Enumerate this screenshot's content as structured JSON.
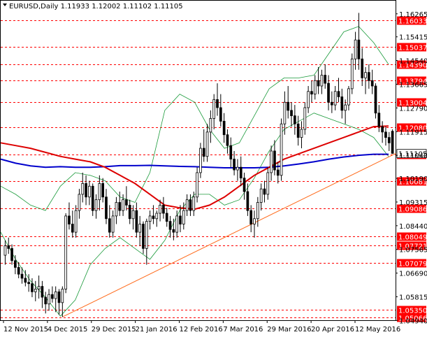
{
  "chart_data": {
    "type": "candlestick",
    "symbol": "EURUSD",
    "timeframe": "Daily",
    "ohlc_header": [
      "1.11933",
      "1.12002",
      "1.11102",
      "1.11105"
    ],
    "ylim": [
      1.0495,
      1.1675
    ],
    "price_ticks": [
      "1.16265",
      "1.15415",
      "1.14540",
      "1.13665",
      "1.12790",
      "1.11915",
      "1.11040",
      "1.10190",
      "1.09315",
      "1.08440",
      "1.07565",
      "1.06690",
      "1.05815",
      "1.04940"
    ],
    "date_ticks": [
      "12 Nov 2015",
      "4 Dec 2015",
      "29 Dec 2015",
      "21 Jan 2016",
      "12 Feb 2016",
      "7 Mar 2016",
      "29 Mar 2016",
      "20 Apr 2016",
      "12 May 2016"
    ],
    "levels": [
      "1.16033",
      "1.15037",
      "1.14390",
      "1.13794",
      "1.13004",
      "1.12080",
      "1.11072",
      "1.10081",
      "1.09086",
      "1.08049",
      "1.07721",
      "1.07079",
      "1.05350",
      "1.05066"
    ],
    "current_price": "1.11105",
    "candles": [
      [
        1.0735,
        1.079,
        1.07,
        1.077
      ],
      [
        1.077,
        1.08,
        1.074,
        1.076
      ],
      [
        1.076,
        1.0775,
        1.07,
        1.0715
      ],
      [
        1.0715,
        1.0735,
        1.0665,
        1.069
      ],
      [
        1.069,
        1.071,
        1.065,
        1.0665
      ],
      [
        1.0665,
        1.069,
        1.063,
        1.065
      ],
      [
        1.065,
        1.068,
        1.062,
        1.0635
      ],
      [
        1.0635,
        1.0665,
        1.06,
        1.063
      ],
      [
        1.063,
        1.065,
        1.058,
        1.06
      ],
      [
        1.06,
        1.064,
        1.0565,
        1.061
      ],
      [
        1.061,
        1.066,
        1.0575,
        1.062
      ],
      [
        1.062,
        1.064,
        1.054,
        1.058
      ],
      [
        1.058,
        1.06,
        1.052,
        1.0555
      ],
      [
        1.0555,
        1.061,
        1.053,
        1.059
      ],
      [
        1.059,
        1.062,
        1.056,
        1.0575
      ],
      [
        1.0575,
        1.062,
        1.0525,
        1.06
      ],
      [
        1.06,
        1.061,
        1.0515,
        1.056
      ],
      [
        1.056,
        1.062,
        1.0507,
        1.061
      ],
      [
        1.061,
        1.089,
        1.0595,
        1.088
      ],
      [
        1.088,
        1.093,
        1.083,
        1.085
      ],
      [
        1.085,
        1.09,
        1.08,
        1.082
      ],
      [
        1.082,
        1.092,
        1.08,
        1.09
      ],
      [
        1.09,
        1.098,
        1.087,
        1.096
      ],
      [
        1.096,
        1.104,
        1.093,
        1.1
      ],
      [
        1.1,
        1.103,
        1.092,
        1.095
      ],
      [
        1.095,
        1.101,
        1.092,
        1.099
      ],
      [
        1.099,
        1.1,
        1.088,
        1.09
      ],
      [
        1.09,
        1.096,
        1.087,
        1.094
      ],
      [
        1.094,
        1.103,
        1.09,
        1.1
      ],
      [
        1.1,
        1.102,
        1.093,
        1.095
      ],
      [
        1.095,
        1.098,
        1.085,
        1.087
      ],
      [
        1.087,
        1.092,
        1.08,
        1.082
      ],
      [
        1.082,
        1.09,
        1.08,
        1.088
      ],
      [
        1.088,
        1.095,
        1.085,
        1.093
      ],
      [
        1.093,
        1.097,
        1.088,
        1.09
      ],
      [
        1.09,
        1.096,
        1.088,
        1.094
      ],
      [
        1.094,
        1.099,
        1.09,
        1.092
      ],
      [
        1.092,
        1.094,
        1.085,
        1.087
      ],
      [
        1.087,
        1.092,
        1.083,
        1.09
      ],
      [
        1.09,
        1.093,
        1.08,
        1.082
      ],
      [
        1.082,
        1.088,
        1.077,
        1.085
      ],
      [
        1.085,
        1.086,
        1.074,
        1.076
      ],
      [
        1.076,
        1.087,
        1.07,
        1.086
      ],
      [
        1.086,
        1.09,
        1.083,
        1.088
      ],
      [
        1.088,
        1.092,
        1.085,
        1.087
      ],
      [
        1.087,
        1.09,
        1.084,
        1.089
      ],
      [
        1.089,
        1.094,
        1.086,
        1.092
      ],
      [
        1.092,
        1.095,
        1.087,
        1.089
      ],
      [
        1.089,
        1.091,
        1.084,
        1.086
      ],
      [
        1.086,
        1.088,
        1.08,
        1.083
      ],
      [
        1.083,
        1.087,
        1.079,
        1.082
      ],
      [
        1.082,
        1.09,
        1.08,
        1.088
      ],
      [
        1.088,
        1.092,
        1.082,
        1.085
      ],
      [
        1.085,
        1.093,
        1.083,
        1.09
      ],
      [
        1.09,
        1.096,
        1.088,
        1.094
      ],
      [
        1.094,
        1.096,
        1.088,
        1.09
      ],
      [
        1.09,
        1.097,
        1.088,
        1.095
      ],
      [
        1.095,
        1.106,
        1.093,
        1.104
      ],
      [
        1.104,
        1.115,
        1.102,
        1.113
      ],
      [
        1.113,
        1.12,
        1.108,
        1.11
      ],
      [
        1.11,
        1.122,
        1.108,
        1.119
      ],
      [
        1.119,
        1.127,
        1.115,
        1.124
      ],
      [
        1.124,
        1.133,
        1.12,
        1.131
      ],
      [
        1.131,
        1.137,
        1.125,
        1.128
      ],
      [
        1.128,
        1.133,
        1.121,
        1.123
      ],
      [
        1.123,
        1.126,
        1.115,
        1.118
      ],
      [
        1.118,
        1.12,
        1.111,
        1.114
      ],
      [
        1.114,
        1.117,
        1.106,
        1.109
      ],
      [
        1.109,
        1.112,
        1.103,
        1.105
      ],
      [
        1.105,
        1.109,
        1.101,
        1.106
      ],
      [
        1.106,
        1.11,
        1.099,
        1.102
      ],
      [
        1.102,
        1.104,
        1.094,
        1.097
      ],
      [
        1.097,
        1.1,
        1.088,
        1.09
      ],
      [
        1.09,
        1.092,
        1.082,
        1.085
      ],
      [
        1.085,
        1.09,
        1.08,
        1.087
      ],
      [
        1.087,
        1.095,
        1.084,
        1.093
      ],
      [
        1.093,
        1.1,
        1.09,
        1.098
      ],
      [
        1.098,
        1.101,
        1.093,
        1.096
      ],
      [
        1.096,
        1.106,
        1.094,
        1.104
      ],
      [
        1.104,
        1.114,
        1.101,
        1.112
      ],
      [
        1.112,
        1.116,
        1.103,
        1.105
      ],
      [
        1.105,
        1.108,
        1.1,
        1.103
      ],
      [
        1.103,
        1.124,
        1.101,
        1.122
      ],
      [
        1.122,
        1.134,
        1.118,
        1.13
      ],
      [
        1.13,
        1.136,
        1.124,
        1.127
      ],
      [
        1.127,
        1.13,
        1.121,
        1.125
      ],
      [
        1.125,
        1.129,
        1.118,
        1.122
      ],
      [
        1.122,
        1.125,
        1.114,
        1.117
      ],
      [
        1.117,
        1.123,
        1.113,
        1.12
      ],
      [
        1.12,
        1.13,
        1.118,
        1.128
      ],
      [
        1.128,
        1.136,
        1.126,
        1.134
      ],
      [
        1.134,
        1.138,
        1.13,
        1.133
      ],
      [
        1.133,
        1.14,
        1.131,
        1.138
      ],
      [
        1.138,
        1.143,
        1.133,
        1.136
      ],
      [
        1.136,
        1.142,
        1.133,
        1.14
      ],
      [
        1.14,
        1.144,
        1.135,
        1.137
      ],
      [
        1.137,
        1.14,
        1.127,
        1.13
      ],
      [
        1.13,
        1.134,
        1.126,
        1.129
      ],
      [
        1.129,
        1.136,
        1.127,
        1.134
      ],
      [
        1.134,
        1.139,
        1.13,
        1.132
      ],
      [
        1.132,
        1.135,
        1.124,
        1.127
      ],
      [
        1.127,
        1.131,
        1.122,
        1.129
      ],
      [
        1.129,
        1.136,
        1.127,
        1.135
      ],
      [
        1.135,
        1.148,
        1.133,
        1.146
      ],
      [
        1.146,
        1.156,
        1.142,
        1.153
      ],
      [
        1.153,
        1.163,
        1.142,
        1.146
      ],
      [
        1.146,
        1.15,
        1.136,
        1.139
      ],
      [
        1.139,
        1.143,
        1.133,
        1.141
      ],
      [
        1.141,
        1.144,
        1.135,
        1.138
      ],
      [
        1.138,
        1.142,
        1.133,
        1.136
      ],
      [
        1.136,
        1.137,
        1.124,
        1.126
      ],
      [
        1.126,
        1.129,
        1.119,
        1.121
      ],
      [
        1.121,
        1.123,
        1.115,
        1.119
      ],
      [
        1.119,
        1.121,
        1.114,
        1.117
      ],
      [
        1.117,
        1.119,
        1.112,
        1.115
      ],
      [
        1.1193,
        1.12,
        1.111,
        1.1111
      ]
    ],
    "ma_red": [
      1.115,
      1.114,
      1.113,
      1.1115,
      1.11,
      1.109,
      1.108,
      1.106,
      1.103,
      1.1,
      1.096,
      1.092,
      1.091,
      1.0905,
      1.092,
      1.095,
      1.099,
      1.103,
      1.106,
      1.109,
      1.111,
      1.113,
      1.115,
      1.117,
      1.119,
      1.121,
      1.1212
    ],
    "ma_blue": [
      1.109,
      1.1075,
      1.1065,
      1.106,
      1.1062,
      1.106,
      1.106,
      1.1062,
      1.1066,
      1.1066,
      1.1067,
      1.1065,
      1.1063,
      1.1062,
      1.106,
      1.1058,
      1.1058,
      1.1058,
      1.106,
      1.1065,
      1.1072,
      1.108,
      1.109,
      1.1098,
      1.1104,
      1.1108,
      1.1108
    ],
    "bb_upper": [
      1.099,
      1.096,
      1.092,
      1.09,
      1.099,
      1.104,
      1.103,
      1.101,
      1.095,
      1.093,
      1.104,
      1.127,
      1.133,
      1.13,
      1.12,
      1.113,
      1.115,
      1.125,
      1.135,
      1.139,
      1.139,
      1.14,
      1.148,
      1.156,
      1.158,
      1.152,
      1.144
    ],
    "bb_lower": [
      1.082,
      1.072,
      1.064,
      1.058,
      1.051,
      1.057,
      1.07,
      1.076,
      1.08,
      1.076,
      1.072,
      1.079,
      1.09,
      1.096,
      1.096,
      1.092,
      1.094,
      1.102,
      1.112,
      1.12,
      1.123,
      1.126,
      1.124,
      1.122,
      1.12,
      1.117,
      1.11
    ],
    "trendline": [
      [
        17,
        1.0507
      ],
      [
        116,
        1.1111
      ]
    ]
  }
}
